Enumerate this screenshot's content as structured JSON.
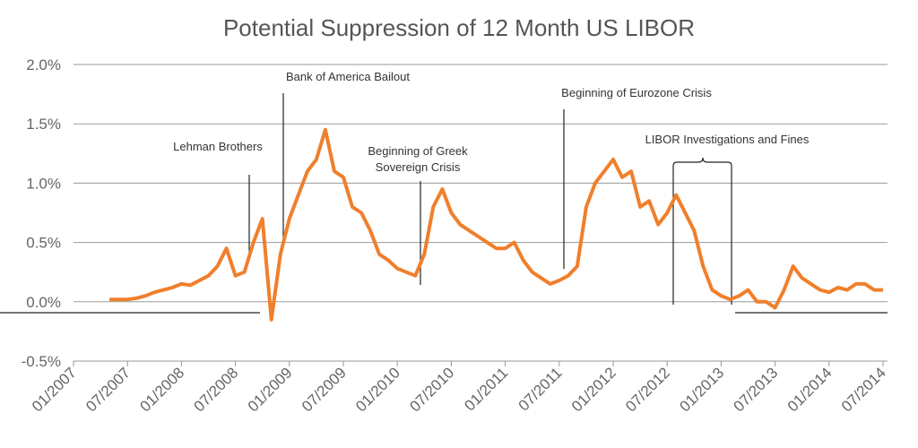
{
  "chart_data": {
    "type": "line",
    "title": "Potential Suppression of 12 Month US LIBOR",
    "x": [
      "05/2007",
      "06/2007",
      "07/2007",
      "08/2007",
      "09/2007",
      "10/2007",
      "11/2007",
      "12/2007",
      "01/2008",
      "02/2008",
      "03/2008",
      "04/2008",
      "05/2008",
      "06/2008",
      "07/2008",
      "08/2008",
      "09/2008",
      "10/2008",
      "11/2008",
      "12/2008",
      "01/2009",
      "02/2009",
      "03/2009",
      "04/2009",
      "05/2009",
      "06/2009",
      "07/2009",
      "08/2009",
      "09/2009",
      "10/2009",
      "11/2009",
      "12/2009",
      "01/2010",
      "02/2010",
      "03/2010",
      "04/2010",
      "05/2010",
      "06/2010",
      "07/2010",
      "08/2010",
      "09/2010",
      "10/2010",
      "11/2010",
      "12/2010",
      "01/2011",
      "02/2011",
      "03/2011",
      "04/2011",
      "05/2011",
      "06/2011",
      "07/2011",
      "08/2011",
      "09/2011",
      "10/2011",
      "11/2011",
      "12/2011",
      "01/2012",
      "02/2012",
      "03/2012",
      "04/2012",
      "05/2012",
      "06/2012",
      "07/2012",
      "08/2012",
      "09/2012",
      "10/2012",
      "11/2012",
      "12/2012",
      "01/2013",
      "02/2013",
      "03/2013",
      "04/2013",
      "05/2013",
      "06/2013",
      "07/2013",
      "08/2013",
      "09/2013",
      "10/2013",
      "11/2013",
      "12/2013",
      "01/2014",
      "02/2014",
      "03/2014",
      "04/2014",
      "05/2014",
      "06/2014",
      "07/2014"
    ],
    "series": [
      {
        "name": "12 Month US LIBOR",
        "color": "#f07f2c",
        "values": [
          0.02,
          0.02,
          0.02,
          0.03,
          0.05,
          0.08,
          0.1,
          0.12,
          0.15,
          0.14,
          0.18,
          0.22,
          0.3,
          0.45,
          0.22,
          0.25,
          0.5,
          0.7,
          -0.15,
          0.4,
          0.7,
          0.9,
          1.1,
          1.2,
          1.45,
          1.1,
          1.05,
          0.8,
          0.75,
          0.6,
          0.4,
          0.35,
          0.28,
          0.25,
          0.22,
          0.4,
          0.8,
          0.95,
          0.75,
          0.65,
          0.6,
          0.55,
          0.5,
          0.45,
          0.45,
          0.5,
          0.35,
          0.25,
          0.2,
          0.15,
          0.18,
          0.22,
          0.3,
          0.8,
          1.0,
          1.1,
          1.2,
          1.05,
          1.1,
          0.8,
          0.85,
          0.65,
          0.75,
          0.9,
          0.75,
          0.6,
          0.3,
          0.1,
          0.05,
          0.02,
          0.05,
          0.1,
          0.0,
          0.0,
          -0.05,
          0.1,
          0.3,
          0.2,
          0.15,
          0.1,
          0.08,
          0.12,
          0.1,
          0.15,
          0.15,
          0.1,
          0.1
        ]
      }
    ],
    "xlim": [
      "01/2007",
      "07/2014"
    ],
    "xticks": [
      "01/2007",
      "07/2007",
      "01/2008",
      "07/2008",
      "01/2009",
      "07/2009",
      "01/2010",
      "07/2010",
      "01/2011",
      "07/2011",
      "01/2012",
      "07/2012",
      "01/2013",
      "07/2013",
      "01/2014",
      "07/2014"
    ],
    "ylim": [
      -0.5,
      2.0
    ],
    "yticks": [
      {
        "value": -0.5,
        "label": "-0.5%"
      },
      {
        "value": 0,
        "label": "0.0%"
      },
      {
        "value": 0.5,
        "label": "0.5%"
      },
      {
        "value": 1.0,
        "label": "1.0%"
      },
      {
        "value": 1.5,
        "label": "1.5%"
      },
      {
        "value": 2.0,
        "label": "2.0%"
      }
    ],
    "grid": true,
    "annotations": [
      {
        "text": [
          "Lehman Brothers"
        ]
      },
      {
        "text": [
          "Bank of America Bailout"
        ]
      },
      {
        "text": [
          "Beginning of Greek",
          "Sovereign Crisis"
        ]
      },
      {
        "text": [
          "Beginning of Eurozone Crisis"
        ]
      },
      {
        "text": [
          "LIBOR Investigations and Fines"
        ]
      }
    ]
  }
}
